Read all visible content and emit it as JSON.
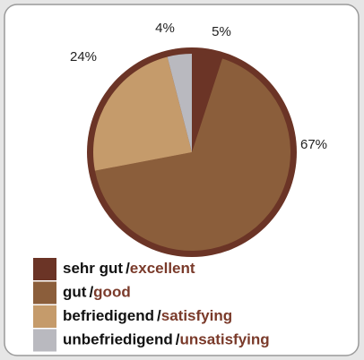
{
  "chart_data": {
    "type": "pie",
    "categories": [
      {
        "de": "sehr gut",
        "en": "excellent"
      },
      {
        "de": "gut",
        "en": "good"
      },
      {
        "de": "befriedigend",
        "en": "satisfying"
      },
      {
        "de": "unbefriedigend",
        "en": "unsatisfying"
      }
    ],
    "legend_separator": "/",
    "values": [
      5,
      67,
      24,
      4
    ],
    "value_labels": [
      "5%",
      "67%",
      "24%",
      "4%"
    ],
    "colors": [
      "#6b3426",
      "#8b5e3b",
      "#c59b6b",
      "#b9b9bf"
    ],
    "ring_color": "#6b3426",
    "legend_en_color": "#7a3a2a"
  }
}
